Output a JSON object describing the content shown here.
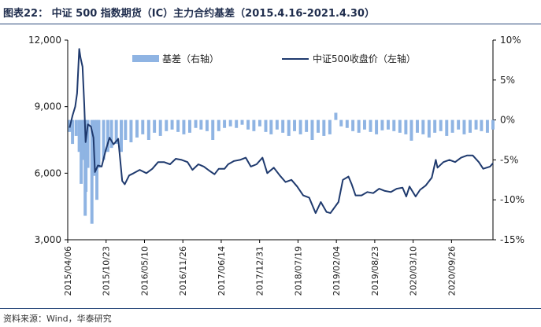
{
  "title": "图表22：  中证 500 指数期货（IC）主力合约基差（2015.4.16-2021.4.30）",
  "source": "资料来源：Wind，华泰研究",
  "colors": {
    "basis": "#8fb4e3",
    "index": "#1f3a6e",
    "rule": "#2b4a7b"
  },
  "chart_data": {
    "type": "bar+line",
    "left_axis": {
      "ticks": [
        3000,
        6000,
        9000,
        12000
      ],
      "tick_labels": [
        "3,000",
        "6,000",
        "9,000",
        "12,000"
      ],
      "ylim": [
        3000,
        12000
      ]
    },
    "right_axis": {
      "ticks": [
        -15,
        -10,
        -5,
        0,
        5,
        10
      ],
      "tick_labels": [
        "-15%",
        "-10%",
        "-5%",
        "0%",
        "5%",
        "10%"
      ],
      "ylim": [
        -15,
        10
      ]
    },
    "x_range": [
      "2015-04-06",
      "2021-04-30"
    ],
    "x_tick_labels": [
      "2015/04/06",
      "2015/10/23",
      "2016/05/10",
      "2016/11/26",
      "2017/06/14",
      "2017/12/31",
      "2018/07/19",
      "2019/02/04",
      "2019/08/23",
      "2020/03/10",
      "2020/09/26"
    ],
    "legend": {
      "basis": "基差（右轴）",
      "index": "中证500收盘价（左轴）"
    },
    "legend_position": "top",
    "index_series": {
      "name": "中证500收盘价（左轴）",
      "axis": "left",
      "x": [
        "2015-04-16",
        "2015-05-01",
        "2015-05-15",
        "2015-05-25",
        "2015-06-05",
        "2015-06-12",
        "2015-06-22",
        "2015-07-01",
        "2015-07-08",
        "2015-07-20",
        "2015-08-05",
        "2015-08-18",
        "2015-08-26",
        "2015-09-10",
        "2015-09-30",
        "2015-10-20",
        "2015-11-10",
        "2015-12-01",
        "2015-12-25",
        "2016-01-15",
        "2016-01-28",
        "2016-02-20",
        "2016-03-15",
        "2016-04-15",
        "2016-05-20",
        "2016-06-20",
        "2016-07-20",
        "2016-08-20",
        "2016-09-20",
        "2016-10-20",
        "2016-11-20",
        "2016-12-20",
        "2017-01-15",
        "2017-02-15",
        "2017-03-15",
        "2017-04-15",
        "2017-05-10",
        "2017-06-01",
        "2017-07-01",
        "2017-07-20",
        "2017-08-20",
        "2017-09-20",
        "2017-10-20",
        "2017-11-15",
        "2017-12-15",
        "2018-01-15",
        "2018-02-09",
        "2018-03-15",
        "2018-04-15",
        "2018-05-15",
        "2018-06-15",
        "2018-07-15",
        "2018-08-15",
        "2018-09-15",
        "2018-10-19",
        "2018-11-15",
        "2018-12-15",
        "2019-01-04",
        "2019-02-15",
        "2019-03-10",
        "2019-04-08",
        "2019-04-25",
        "2019-05-15",
        "2019-06-15",
        "2019-07-15",
        "2019-08-15",
        "2019-09-15",
        "2019-10-15",
        "2019-11-15",
        "2019-12-15",
        "2020-01-15",
        "2020-02-03",
        "2020-02-20",
        "2020-03-23",
        "2020-04-15",
        "2020-05-15",
        "2020-06-15",
        "2020-07-06",
        "2020-07-15",
        "2020-08-15",
        "2020-09-15",
        "2020-10-15",
        "2020-11-15",
        "2020-12-15",
        "2021-01-15",
        "2021-02-15",
        "2021-03-10",
        "2021-04-15",
        "2021-04-30"
      ],
      "values": [
        8050,
        8600,
        9000,
        9600,
        11600,
        11200,
        10800,
        9100,
        7400,
        8200,
        8100,
        7600,
        6050,
        6350,
        6300,
        7000,
        7600,
        7300,
        7550,
        5650,
        5500,
        5900,
        6000,
        6150,
        6000,
        6200,
        6500,
        6500,
        6400,
        6650,
        6600,
        6500,
        6150,
        6400,
        6300,
        6100,
        5950,
        6200,
        6200,
        6400,
        6550,
        6600,
        6700,
        6300,
        6400,
        6700,
        6000,
        6250,
        5900,
        5600,
        5700,
        5400,
        5000,
        4900,
        4200,
        4700,
        4250,
        4200,
        4700,
        5700,
        5850,
        5500,
        5000,
        5000,
        5150,
        5100,
        5300,
        5200,
        5150,
        5300,
        5350,
        4950,
        5400,
        4950,
        5250,
        5450,
        5800,
        6600,
        6250,
        6500,
        6600,
        6500,
        6700,
        6800,
        6800,
        6500,
        6200,
        6300,
        6450
      ]
    },
    "basis_series": {
      "name": "基差（右轴）",
      "axis": "right",
      "unit": "%",
      "x": [
        "2015-04-16",
        "2015-05-01",
        "2015-05-20",
        "2015-06-05",
        "2015-06-15",
        "2015-06-25",
        "2015-07-06",
        "2015-07-10",
        "2015-07-20",
        "2015-08-10",
        "2015-08-25",
        "2015-09-05",
        "2015-09-15",
        "2015-10-10",
        "2015-11-01",
        "2015-11-20",
        "2015-12-15",
        "2016-01-10",
        "2016-02-01",
        "2016-03-01",
        "2016-04-01",
        "2016-05-01",
        "2016-06-01",
        "2016-07-01",
        "2016-08-01",
        "2016-09-01",
        "2016-10-01",
        "2016-11-01",
        "2016-12-01",
        "2017-01-01",
        "2017-02-01",
        "2017-03-01",
        "2017-04-01",
        "2017-05-01",
        "2017-06-01",
        "2017-07-01",
        "2017-08-01",
        "2017-09-01",
        "2017-10-01",
        "2017-11-01",
        "2017-12-01",
        "2018-01-01",
        "2018-02-01",
        "2018-03-01",
        "2018-04-01",
        "2018-05-01",
        "2018-06-01",
        "2018-07-01",
        "2018-08-01",
        "2018-09-01",
        "2018-10-01",
        "2018-11-01",
        "2018-12-01",
        "2019-01-01",
        "2019-02-01",
        "2019-03-01",
        "2019-04-01",
        "2019-05-01",
        "2019-06-01",
        "2019-07-01",
        "2019-08-01",
        "2019-09-01",
        "2019-10-01",
        "2019-11-01",
        "2019-12-01",
        "2020-01-01",
        "2020-02-01",
        "2020-03-01",
        "2020-04-01",
        "2020-05-01",
        "2020-06-01",
        "2020-07-01",
        "2020-08-01",
        "2020-09-01",
        "2020-10-01",
        "2020-11-01",
        "2020-12-01",
        "2021-01-01",
        "2021-02-01",
        "2021-03-01",
        "2021-04-01",
        "2021-04-30"
      ],
      "values": [
        -1.5,
        -3,
        -2,
        -4,
        -8,
        -5,
        -12,
        -9,
        -6,
        -13,
        -7,
        -10,
        -6,
        -5,
        -4,
        -3.5,
        -3,
        -4,
        -2.5,
        -2.8,
        -2.2,
        -1.8,
        -2.5,
        -1.6,
        -2,
        -1.4,
        -1.2,
        -1.5,
        -1.8,
        -1.6,
        -1,
        -1.2,
        -1.4,
        -2.5,
        -1.4,
        -1,
        -0.8,
        -1,
        -0.6,
        -1.2,
        -1.4,
        -0.8,
        -1.5,
        -1.8,
        -1.2,
        -1.6,
        -2,
        -1.4,
        -1.8,
        -1.5,
        -2.5,
        -1.6,
        -2,
        -1.8,
        0.9,
        -0.8,
        -1,
        -1.4,
        -1.6,
        -1.2,
        -1.5,
        -1.8,
        -1.3,
        -1.2,
        -1.4,
        -1.6,
        -1.8,
        -2.6,
        -1.6,
        -1.8,
        -2.2,
        -1.6,
        -1.4,
        -2,
        -1.6,
        -1.2,
        -1.8,
        -1.6,
        -1.2,
        -1.4,
        -1.6,
        -1.2
      ]
    }
  }
}
